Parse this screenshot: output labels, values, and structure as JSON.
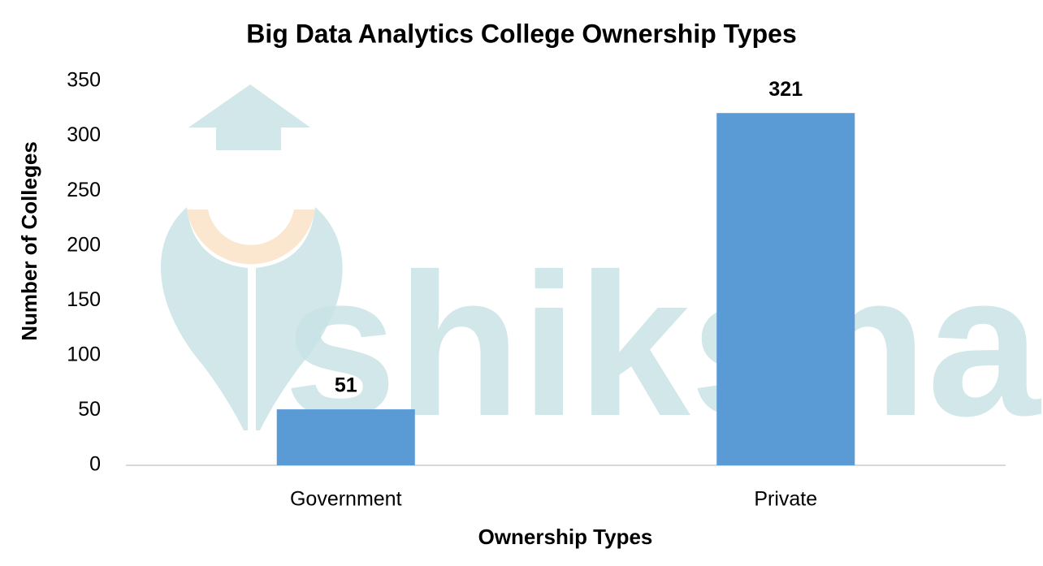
{
  "chart_data": {
    "type": "bar",
    "title": "Big Data Analytics College Ownership Types",
    "x_label": "Ownership Types",
    "y_label": "Number of Colleges",
    "watermark": "shiksha",
    "categories": [
      "Government",
      "Private"
    ],
    "values": [
      51,
      321
    ],
    "color": "#5b9bd5",
    "ylim": [
      0,
      350
    ],
    "yticks": [
      0,
      50,
      100,
      150,
      200,
      250,
      300,
      350
    ],
    "grid": false
  }
}
